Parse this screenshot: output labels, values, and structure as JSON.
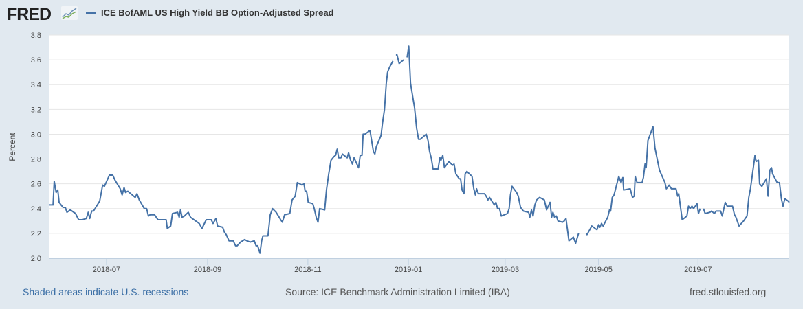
{
  "header": {
    "logo_text": "FRED",
    "series_title": "ICE BofAML US High Yield BB Option-Adjusted Spread"
  },
  "footer": {
    "recessions_link": "Shaded areas indicate U.S. recessions",
    "source": "Source: ICE Benchmark Administration Limited (IBA)",
    "site": "fred.stlouisfed.org"
  },
  "colors": {
    "line": "#4572a7",
    "grid": "#e6e6e6",
    "background": "#e1e9f0"
  },
  "chart_data": {
    "type": "line",
    "title": "ICE BofAML US High Yield BB Option-Adjusted Spread",
    "xlabel": "",
    "ylabel": "Percent",
    "x_unit": "days since 2018-05-27",
    "xlim": [
      0,
      454
    ],
    "ylim": [
      2.0,
      3.8
    ],
    "yticks": [
      "2.0",
      "2.2",
      "2.4",
      "2.6",
      "2.8",
      "3.0",
      "3.2",
      "3.4",
      "3.6",
      "3.8"
    ],
    "xticks": [
      {
        "label": "2018-07",
        "x": 35
      },
      {
        "label": "2018-09",
        "x": 97
      },
      {
        "label": "2018-11",
        "x": 158.6
      },
      {
        "label": "2019-01",
        "x": 220.3
      },
      {
        "label": "2019-03",
        "x": 279.7
      },
      {
        "label": "2019-05",
        "x": 337
      },
      {
        "label": "2019-07",
        "x": 398
      }
    ],
    "grid": true,
    "legend": "top-left",
    "series": [
      {
        "name": "ICE BofAML US High Yield BB Option-Adjusted Spread",
        "points": [
          [
            0,
            2.43
          ],
          [
            2.2,
            2.43
          ],
          [
            2.9,
            2.62
          ],
          [
            4.1,
            2.53
          ],
          [
            5.1,
            2.55
          ],
          [
            5.9,
            2.45
          ],
          [
            8.3,
            2.41
          ],
          [
            9.7,
            2.41
          ],
          [
            10.7,
            2.37
          ],
          [
            12.8,
            2.39
          ],
          [
            16,
            2.36
          ],
          [
            17.9,
            2.31
          ],
          [
            20.2,
            2.31
          ],
          [
            22.6,
            2.32
          ],
          [
            23.8,
            2.37
          ],
          [
            24.7,
            2.32
          ],
          [
            25.9,
            2.38
          ],
          [
            27,
            2.38
          ],
          [
            30.8,
            2.46
          ],
          [
            31.8,
            2.53
          ],
          [
            32.6,
            2.59
          ],
          [
            33.7,
            2.58
          ],
          [
            36.8,
            2.67
          ],
          [
            38.8,
            2.67
          ],
          [
            40.2,
            2.63
          ],
          [
            43.4,
            2.56
          ],
          [
            44.6,
            2.51
          ],
          [
            45.8,
            2.57
          ],
          [
            46.7,
            2.53
          ],
          [
            48.1,
            2.54
          ],
          [
            52.6,
            2.49
          ],
          [
            53.7,
            2.52
          ],
          [
            55.1,
            2.47
          ],
          [
            58.2,
            2.4
          ],
          [
            59.6,
            2.4
          ],
          [
            60.7,
            2.34
          ],
          [
            61.7,
            2.35
          ],
          [
            64.5,
            2.35
          ],
          [
            66.6,
            2.31
          ],
          [
            68.1,
            2.31
          ],
          [
            71.6,
            2.31
          ],
          [
            72.3,
            2.24
          ],
          [
            74.4,
            2.26
          ],
          [
            75.5,
            2.36
          ],
          [
            78.6,
            2.37
          ],
          [
            79.6,
            2.33
          ],
          [
            80.4,
            2.39
          ],
          [
            81.4,
            2.33
          ],
          [
            82.8,
            2.34
          ],
          [
            85.2,
            2.37
          ],
          [
            86.6,
            2.33
          ],
          [
            91.9,
            2.28
          ],
          [
            93.6,
            2.24
          ],
          [
            96.2,
            2.31
          ],
          [
            99.3,
            2.31
          ],
          [
            100.4,
            2.28
          ],
          [
            102.1,
            2.32
          ],
          [
            103.2,
            2.26
          ],
          [
            106.3,
            2.25
          ],
          [
            107.4,
            2.21
          ],
          [
            108.5,
            2.19
          ],
          [
            110.2,
            2.14
          ],
          [
            112.8,
            2.14
          ],
          [
            114.2,
            2.1
          ],
          [
            115.2,
            2.1
          ],
          [
            117.3,
            2.13
          ],
          [
            119.8,
            2.15
          ],
          [
            121.2,
            2.14
          ],
          [
            123.2,
            2.13
          ],
          [
            125.7,
            2.14
          ],
          [
            126.8,
            2.1
          ],
          [
            127.8,
            2.1
          ],
          [
            129.2,
            2.04
          ],
          [
            130.2,
            2.14
          ],
          [
            131,
            2.18
          ],
          [
            134.1,
            2.18
          ],
          [
            135.5,
            2.35
          ],
          [
            136.9,
            2.4
          ],
          [
            139.1,
            2.37
          ],
          [
            141.9,
            2.31
          ],
          [
            142.9,
            2.29
          ],
          [
            144.3,
            2.35
          ],
          [
            147.5,
            2.36
          ],
          [
            148.9,
            2.47
          ],
          [
            150.8,
            2.5
          ],
          [
            152.1,
            2.61
          ],
          [
            155,
            2.59
          ],
          [
            156.2,
            2.6
          ],
          [
            156.9,
            2.54
          ],
          [
            157.8,
            2.54
          ],
          [
            158.8,
            2.45
          ],
          [
            161.6,
            2.44
          ],
          [
            162.5,
            2.4
          ],
          [
            163.7,
            2.33
          ],
          [
            164.8,
            2.29
          ],
          [
            165.8,
            2.4
          ],
          [
            168.9,
            2.39
          ],
          [
            170,
            2.55
          ],
          [
            171.4,
            2.68
          ],
          [
            172.8,
            2.79
          ],
          [
            174.6,
            2.82
          ],
          [
            175.6,
            2.83
          ],
          [
            176.6,
            2.88
          ],
          [
            177.5,
            2.81
          ],
          [
            178.9,
            2.81
          ],
          [
            179.8,
            2.84
          ],
          [
            182.7,
            2.81
          ],
          [
            183.6,
            2.85
          ],
          [
            184.8,
            2.79
          ],
          [
            185.9,
            2.76
          ],
          [
            186.9,
            2.81
          ],
          [
            189.7,
            2.73
          ],
          [
            190.7,
            2.83
          ],
          [
            191.8,
            2.83
          ],
          [
            192.5,
            3.0
          ],
          [
            193.6,
            3.0
          ],
          [
            196.7,
            3.03
          ],
          [
            198.8,
            2.86
          ],
          [
            199.7,
            2.84
          ],
          [
            200.6,
            2.9
          ],
          [
            203.5,
            2.99
          ],
          [
            204.4,
            3.09
          ],
          [
            205.6,
            3.2
          ],
          [
            206.7,
            3.41
          ],
          [
            207.5,
            3.5
          ],
          [
            208.7,
            3.54
          ],
          [
            210.8,
            3.59
          ],
          null,
          [
            212.6,
            3.64
          ],
          [
            213.3,
            3.64
          ],
          [
            214.6,
            3.57
          ],
          [
            217.4,
            3.6
          ],
          null,
          [
            219.5,
            3.62
          ],
          [
            220.5,
            3.71
          ],
          [
            221.6,
            3.41
          ],
          [
            224.1,
            3.21
          ],
          [
            225.3,
            3.05
          ],
          [
            226.5,
            2.96
          ],
          [
            227.6,
            2.96
          ],
          [
            231.2,
            3.0
          ],
          [
            232.3,
            2.95
          ],
          [
            233.3,
            2.86
          ],
          [
            234.3,
            2.81
          ],
          [
            235.4,
            2.72
          ],
          [
            238.5,
            2.72
          ],
          [
            239.6,
            2.81
          ],
          [
            240.3,
            2.79
          ],
          [
            241.4,
            2.83
          ],
          [
            242.4,
            2.73
          ],
          [
            245.2,
            2.78
          ],
          [
            246.6,
            2.76
          ],
          [
            247.6,
            2.75
          ],
          [
            248.3,
            2.76
          ],
          [
            249.4,
            2.68
          ],
          [
            251.5,
            2.64
          ],
          [
            252.3,
            2.64
          ],
          [
            253.2,
            2.55
          ],
          [
            254.4,
            2.52
          ],
          [
            255.1,
            2.68
          ],
          [
            256.2,
            2.7
          ],
          [
            259.3,
            2.66
          ],
          [
            260.4,
            2.56
          ],
          [
            261.4,
            2.51
          ],
          [
            262.1,
            2.56
          ],
          [
            263.2,
            2.52
          ],
          [
            267,
            2.52
          ],
          [
            268,
            2.5
          ],
          [
            269.1,
            2.47
          ],
          [
            270.1,
            2.49
          ],
          [
            273,
            2.43
          ],
          [
            274,
            2.45
          ],
          [
            275,
            2.4
          ],
          [
            276.2,
            2.4
          ],
          [
            277.3,
            2.34
          ],
          [
            281.1,
            2.36
          ],
          [
            282.1,
            2.4
          ],
          [
            282.9,
            2.51
          ],
          [
            283.9,
            2.58
          ],
          [
            286.7,
            2.53
          ],
          [
            287.7,
            2.5
          ],
          [
            289.1,
            2.41
          ],
          [
            290.9,
            2.38
          ],
          [
            294.1,
            2.37
          ],
          [
            294.8,
            2.33
          ],
          [
            295.8,
            2.39
          ],
          [
            296.8,
            2.34
          ],
          [
            297.9,
            2.43
          ],
          [
            299,
            2.47
          ],
          [
            300.8,
            2.49
          ],
          [
            303.7,
            2.47
          ],
          [
            305.1,
            2.39
          ],
          [
            307.2,
            2.45
          ],
          [
            308.2,
            2.33
          ],
          [
            309,
            2.37
          ],
          [
            310,
            2.33
          ],
          [
            311.1,
            2.34
          ],
          [
            312.1,
            2.3
          ],
          [
            314.9,
            2.29
          ],
          [
            315.9,
            2.3
          ],
          [
            317,
            2.32
          ],
          [
            318.8,
            2.14
          ],
          [
            321.5,
            2.17
          ],
          [
            322.9,
            2.12
          ],
          [
            324.7,
            2.2
          ],
          null,
          [
            329.4,
            2.2
          ],
          [
            329.9,
            2.19
          ],
          [
            332.8,
            2.26
          ],
          [
            336,
            2.23
          ],
          [
            337,
            2.27
          ],
          [
            337.8,
            2.25
          ],
          [
            338.8,
            2.28
          ],
          [
            339.8,
            2.26
          ],
          [
            342.6,
            2.33
          ],
          [
            343.7,
            2.39
          ],
          [
            344.4,
            2.38
          ],
          [
            345.4,
            2.49
          ],
          [
            346.5,
            2.51
          ],
          [
            349.4,
            2.66
          ],
          [
            350.8,
            2.61
          ],
          [
            351.9,
            2.65
          ],
          [
            352.4,
            2.55
          ],
          [
            356.4,
            2.56
          ],
          [
            357.8,
            2.49
          ],
          [
            358.9,
            2.5
          ],
          [
            359.5,
            2.66
          ],
          [
            360.6,
            2.61
          ],
          [
            363.7,
            2.61
          ],
          [
            364.5,
            2.65
          ],
          [
            365.5,
            2.76
          ],
          [
            366.2,
            2.73
          ],
          [
            367.3,
            2.95
          ],
          [
            370.4,
            3.06
          ],
          [
            371.6,
            2.89
          ],
          [
            374.4,
            2.71
          ],
          [
            377.7,
            2.61
          ],
          [
            378.6,
            2.56
          ],
          [
            380.3,
            2.59
          ],
          [
            381.7,
            2.56
          ],
          [
            384.5,
            2.56
          ],
          [
            385.5,
            2.5
          ],
          [
            386.2,
            2.52
          ],
          [
            388.3,
            2.31
          ],
          [
            391.2,
            2.34
          ],
          [
            392.2,
            2.42
          ],
          [
            393.2,
            2.4
          ],
          [
            394.3,
            2.42
          ],
          [
            395.3,
            2.4
          ],
          [
            397.4,
            2.44
          ],
          [
            398.3,
            2.36
          ],
          [
            399.3,
            2.4
          ],
          null,
          [
            401.4,
            2.4
          ],
          [
            402.4,
            2.36
          ],
          [
            405.3,
            2.37
          ],
          [
            406.3,
            2.38
          ],
          [
            408.1,
            2.36
          ],
          [
            409.1,
            2.38
          ],
          [
            411.9,
            2.38
          ],
          [
            412.9,
            2.34
          ],
          [
            414.7,
            2.45
          ],
          [
            415.9,
            2.42
          ],
          [
            419.2,
            2.42
          ],
          [
            420.4,
            2.35
          ],
          [
            421.3,
            2.33
          ],
          [
            423.2,
            2.26
          ],
          [
            426,
            2.3
          ],
          [
            428.1,
            2.34
          ],
          [
            429.2,
            2.49
          ],
          [
            430.2,
            2.56
          ],
          [
            433,
            2.83
          ],
          [
            433.7,
            2.78
          ],
          [
            435.1,
            2.79
          ],
          [
            435.8,
            2.6
          ],
          [
            437.2,
            2.58
          ],
          [
            440,
            2.64
          ],
          [
            441,
            2.5
          ],
          [
            442.1,
            2.71
          ],
          [
            443.1,
            2.73
          ],
          [
            443.8,
            2.68
          ],
          [
            446.6,
            2.61
          ],
          [
            448,
            2.61
          ],
          [
            449.2,
            2.48
          ],
          [
            450.2,
            2.42
          ],
          [
            451.3,
            2.48
          ],
          [
            453.4,
            2.46
          ],
          [
            454,
            2.45
          ]
        ]
      }
    ]
  }
}
